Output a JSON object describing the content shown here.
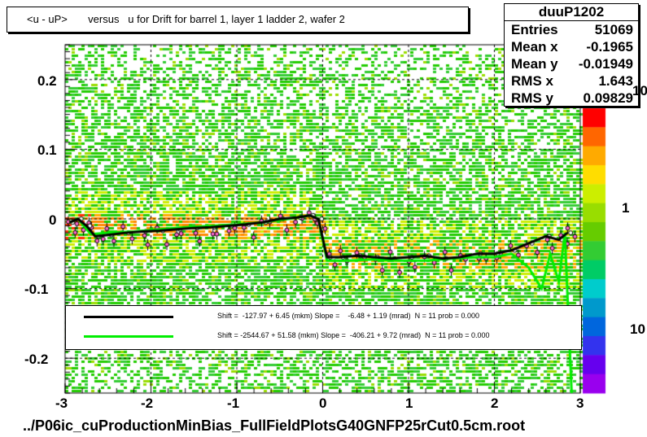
{
  "title": "<u - uP>       versus   u for Drift for barrel 1, layer 1 ladder 2, wafer 2",
  "footer": "../P06ic_cuProductionMinBias_FullFieldPlotsG40GNFP25rCut0.5cm.root",
  "stats": {
    "name": "duuP1202",
    "rows": [
      {
        "label": "Entries",
        "value": "51069"
      },
      {
        "label": "Mean x",
        "value": "-0.1965"
      },
      {
        "label": "Mean y",
        "value": "-0.01949"
      },
      {
        "label": "RMS x",
        "value": "1.643"
      },
      {
        "label": "RMS y",
        "value": "0.09829"
      }
    ]
  },
  "legend": [
    {
      "color": "#000000",
      "text": "Shift =  -127.97 + 6.45 (mkm) Slope =    -6.48 + 1.19 (mrad)  N = 11 prob = 0.000"
    },
    {
      "color": "#00ee00",
      "text": "Shift = -2544.67 + 51.58 (mkm) Slope =  -406.21 + 9.72 (mrad)  N = 11 prob = 0.000"
    }
  ],
  "colors": {
    "black_fit": "#000000",
    "green_fit": "#00ee00",
    "points": "#ff66cc"
  },
  "chart_data": {
    "type": "heatmap",
    "xlim": [
      -3,
      3
    ],
    "ylim": [
      -0.25,
      0.25
    ],
    "x_ticks": [
      "-3",
      "-2",
      "-1",
      "0",
      "1",
      "2",
      "3"
    ],
    "y_ticks": [
      "-0.2",
      "-0.1",
      "0",
      "0.1",
      "0.2"
    ],
    "z_scale": "log",
    "z_ticks": [
      "10",
      "1",
      "10"
    ],
    "grid": true,
    "series": [
      {
        "name": "black_profile",
        "x": [
          -2.95,
          -2.85,
          -2.75,
          -2.65,
          -2.5,
          -2.3,
          -2.1,
          -1.9,
          -1.7,
          -1.5,
          -1.3,
          -1.1,
          -0.9,
          -0.7,
          -0.5,
          -0.3,
          -0.15,
          -0.05,
          0.05,
          0.2,
          0.4,
          0.6,
          0.8,
          1.0,
          1.2,
          1.4,
          1.6,
          1.8,
          2.0,
          2.2,
          2.4,
          2.6,
          2.75,
          2.85
        ],
        "y": [
          -0.005,
          0.0,
          -0.01,
          -0.025,
          -0.023,
          -0.02,
          -0.018,
          -0.017,
          -0.015,
          -0.013,
          -0.012,
          -0.01,
          -0.008,
          -0.005,
          0.0,
          0.002,
          0.005,
          0.0,
          -0.055,
          -0.055,
          -0.053,
          -0.055,
          -0.057,
          -0.055,
          -0.053,
          -0.057,
          -0.055,
          -0.05,
          -0.05,
          -0.045,
          -0.035,
          -0.025,
          -0.03,
          -0.02
        ]
      },
      {
        "name": "green_profile",
        "x": [
          -2.95,
          -2.85,
          -2.7,
          -2.5,
          -2.2,
          -1.9,
          -1.6,
          -1.3,
          -1.0,
          -0.7,
          -0.4,
          -0.15,
          -0.05,
          0.05,
          0.3,
          0.6,
          0.9,
          1.2,
          1.5,
          1.8,
          2.0,
          2.2,
          2.4,
          2.55,
          2.65,
          2.75,
          2.82,
          2.9
        ],
        "y": [
          -0.005,
          0.0,
          -0.022,
          -0.02,
          -0.018,
          -0.015,
          -0.012,
          -0.01,
          -0.008,
          -0.005,
          0.0,
          0.005,
          0.0,
          -0.06,
          -0.06,
          -0.058,
          -0.06,
          -0.06,
          -0.057,
          -0.055,
          -0.055,
          -0.05,
          -0.07,
          -0.1,
          -0.05,
          -0.09,
          -0.02,
          -0.25
        ]
      }
    ]
  }
}
